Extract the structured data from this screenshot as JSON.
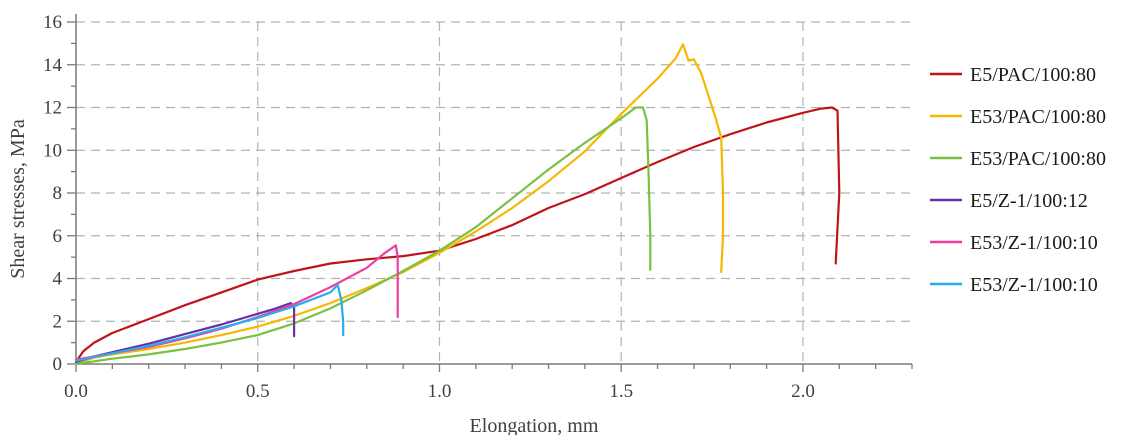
{
  "chart_data": {
    "type": "line",
    "title": "",
    "xlabel": "Elongation, mm",
    "ylabel": "Shear stresses, MPa",
    "xlim": [
      0,
      2.3
    ],
    "ylim": [
      0,
      16
    ],
    "xticks": [
      0.0,
      0.5,
      1.0,
      1.5,
      2.0
    ],
    "xtick_labels": [
      "0.0",
      "0.5",
      "1.0",
      "1.5",
      "2.0"
    ],
    "yticks": [
      0,
      2,
      4,
      6,
      8,
      10,
      12,
      14,
      16
    ],
    "ytick_labels": [
      "0",
      "2",
      "4",
      "6",
      "8",
      "10",
      "12",
      "14",
      "16"
    ],
    "grid": true,
    "legend_position": "right",
    "series": [
      {
        "name": "E5/PAC/100:80",
        "color": "#c0141c",
        "points": [
          [
            0,
            0.1
          ],
          [
            0.02,
            0.6
          ],
          [
            0.05,
            1.0
          ],
          [
            0.1,
            1.45
          ],
          [
            0.2,
            2.1
          ],
          [
            0.3,
            2.75
          ],
          [
            0.4,
            3.35
          ],
          [
            0.5,
            3.95
          ],
          [
            0.6,
            4.35
          ],
          [
            0.7,
            4.7
          ],
          [
            0.8,
            4.9
          ],
          [
            0.9,
            5.05
          ],
          [
            1.0,
            5.3
          ],
          [
            1.1,
            5.85
          ],
          [
            1.2,
            6.5
          ],
          [
            1.3,
            7.3
          ],
          [
            1.4,
            7.95
          ],
          [
            1.5,
            8.7
          ],
          [
            1.6,
            9.45
          ],
          [
            1.7,
            10.15
          ],
          [
            1.8,
            10.75
          ],
          [
            1.9,
            11.3
          ],
          [
            2.0,
            11.75
          ],
          [
            2.05,
            11.95
          ],
          [
            2.08,
            12.0
          ],
          [
            2.095,
            11.85
          ],
          [
            2.1,
            8.0
          ],
          [
            2.09,
            4.7
          ]
        ]
      },
      {
        "name": "E53/PAC/100:80",
        "color": "#f5b800",
        "points": [
          [
            0,
            0.0
          ],
          [
            0.05,
            0.3
          ],
          [
            0.1,
            0.45
          ],
          [
            0.2,
            0.7
          ],
          [
            0.3,
            1.0
          ],
          [
            0.4,
            1.35
          ],
          [
            0.5,
            1.75
          ],
          [
            0.6,
            2.25
          ],
          [
            0.7,
            2.85
          ],
          [
            0.8,
            3.55
          ],
          [
            0.9,
            4.3
          ],
          [
            1.0,
            5.2
          ],
          [
            1.1,
            6.2
          ],
          [
            1.2,
            7.3
          ],
          [
            1.3,
            8.55
          ],
          [
            1.4,
            9.95
          ],
          [
            1.5,
            11.7
          ],
          [
            1.6,
            13.35
          ],
          [
            1.65,
            14.3
          ],
          [
            1.67,
            14.95
          ],
          [
            1.685,
            14.2
          ],
          [
            1.7,
            14.25
          ],
          [
            1.72,
            13.6
          ],
          [
            1.76,
            11.5
          ],
          [
            1.775,
            10.6
          ],
          [
            1.78,
            8.0
          ],
          [
            1.78,
            6.0
          ],
          [
            1.775,
            4.3
          ]
        ]
      },
      {
        "name": "E53/PAC/100:80",
        "color": "#7ac143",
        "points": [
          [
            0,
            0.0
          ],
          [
            0.1,
            0.25
          ],
          [
            0.2,
            0.45
          ],
          [
            0.3,
            0.7
          ],
          [
            0.4,
            1.0
          ],
          [
            0.5,
            1.35
          ],
          [
            0.6,
            1.9
          ],
          [
            0.7,
            2.6
          ],
          [
            0.8,
            3.45
          ],
          [
            0.9,
            4.35
          ],
          [
            1.0,
            5.3
          ],
          [
            1.1,
            6.4
          ],
          [
            1.2,
            7.75
          ],
          [
            1.3,
            9.1
          ],
          [
            1.4,
            10.35
          ],
          [
            1.5,
            11.5
          ],
          [
            1.54,
            12.0
          ],
          [
            1.56,
            12.0
          ],
          [
            1.57,
            11.4
          ],
          [
            1.575,
            9.0
          ],
          [
            1.58,
            6.0
          ],
          [
            1.58,
            4.4
          ]
        ]
      },
      {
        "name": "E5/Z-1/100:12",
        "color": "#6a2fa8",
        "points": [
          [
            0,
            0.1
          ],
          [
            0.05,
            0.35
          ],
          [
            0.1,
            0.55
          ],
          [
            0.2,
            0.95
          ],
          [
            0.3,
            1.4
          ],
          [
            0.4,
            1.85
          ],
          [
            0.5,
            2.35
          ],
          [
            0.55,
            2.6
          ],
          [
            0.59,
            2.85
          ],
          [
            0.6,
            2.7
          ],
          [
            0.6,
            1.8
          ],
          [
            0.6,
            1.3
          ]
        ]
      },
      {
        "name": "E53/Z-1/100:10",
        "color": "#ec3fa0",
        "points": [
          [
            0,
            0.2
          ],
          [
            0.1,
            0.5
          ],
          [
            0.2,
            0.8
          ],
          [
            0.3,
            1.2
          ],
          [
            0.4,
            1.65
          ],
          [
            0.5,
            2.2
          ],
          [
            0.6,
            2.8
          ],
          [
            0.7,
            3.6
          ],
          [
            0.8,
            4.5
          ],
          [
            0.85,
            5.2
          ],
          [
            0.88,
            5.55
          ],
          [
            0.885,
            5.0
          ],
          [
            0.885,
            3.5
          ],
          [
            0.885,
            2.2
          ]
        ]
      },
      {
        "name": "E53/Z-1/100:10",
        "color": "#27aee8",
        "points": [
          [
            0,
            0.15
          ],
          [
            0.1,
            0.5
          ],
          [
            0.2,
            0.85
          ],
          [
            0.3,
            1.25
          ],
          [
            0.4,
            1.7
          ],
          [
            0.5,
            2.15
          ],
          [
            0.6,
            2.7
          ],
          [
            0.7,
            3.35
          ],
          [
            0.72,
            3.7
          ],
          [
            0.73,
            3.0
          ],
          [
            0.735,
            2.0
          ],
          [
            0.735,
            1.35
          ]
        ]
      }
    ]
  }
}
